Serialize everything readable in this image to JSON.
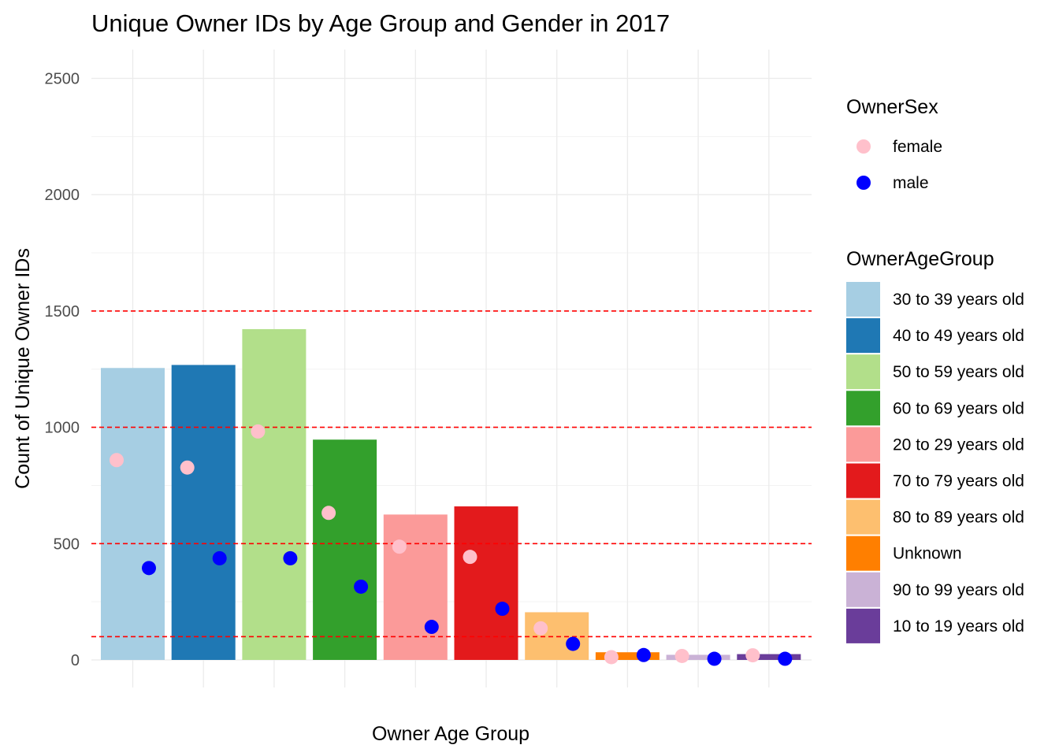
{
  "chart_data": {
    "type": "bar",
    "title": "Unique Owner IDs by Age Group and Gender in 2017",
    "xlabel": "Owner Age Group",
    "ylabel": "Count of Unique Owner IDs",
    "ylim": [
      0,
      2600
    ],
    "y_ticks": [
      0,
      500,
      1000,
      1500,
      2000,
      2500
    ],
    "x_tick_labels": "none",
    "grid": true,
    "reference_lines": {
      "color": "#ff0000",
      "style": "dashed",
      "values": [
        100,
        500,
        1000,
        1500
      ]
    },
    "categories": [
      "30 to 39 years old",
      "40 to 49 years old",
      "50 to 59 years old",
      "60 to 69 years old",
      "20 to 29 years old",
      "70 to 79 years old",
      "80 to 89 years old",
      "Unknown",
      "90 to 99 years old",
      "10 to 19 years old"
    ],
    "bar_colors": [
      "#a6cee3",
      "#1f78b4",
      "#b2df8a",
      "#33a02c",
      "#fb9a99",
      "#e31a1c",
      "#fdbf6f",
      "#ff7f00",
      "#cab2d6",
      "#6a3d9a"
    ],
    "values": [
      1255,
      1268,
      1422,
      947,
      625,
      660,
      205,
      33,
      22,
      25
    ],
    "points": [
      {
        "name": "female",
        "color": "#ffc0cb",
        "values": [
          859,
          827,
          982,
          632,
          487,
          443,
          136,
          12,
          17,
          20
        ]
      },
      {
        "name": "male",
        "color": "#0000ff",
        "values": [
          395,
          437,
          437,
          315,
          142,
          220,
          69,
          21,
          5,
          5
        ]
      }
    ],
    "legends": [
      {
        "title": "OwnerSex",
        "kind": "point",
        "placement": "right",
        "items": [
          {
            "label": "female",
            "color": "#ffc0cb"
          },
          {
            "label": "male",
            "color": "#0000ff"
          }
        ]
      },
      {
        "title": "OwnerAgeGroup",
        "kind": "fill",
        "placement": "right",
        "items": [
          {
            "label": "30 to 39 years old",
            "color": "#a6cee3"
          },
          {
            "label": "40 to 49 years old",
            "color": "#1f78b4"
          },
          {
            "label": "50 to 59 years old",
            "color": "#b2df8a"
          },
          {
            "label": "60 to 69 years old",
            "color": "#33a02c"
          },
          {
            "label": "20 to 29 years old",
            "color": "#fb9a99"
          },
          {
            "label": "70 to 79 years old",
            "color": "#e31a1c"
          },
          {
            "label": "80 to 89 years old",
            "color": "#fdbf6f"
          },
          {
            "label": "Unknown",
            "color": "#ff7f00"
          },
          {
            "label": "90 to 99 years old",
            "color": "#cab2d6"
          },
          {
            "label": "10 to 19 years old",
            "color": "#6a3d9a"
          }
        ]
      }
    ]
  }
}
